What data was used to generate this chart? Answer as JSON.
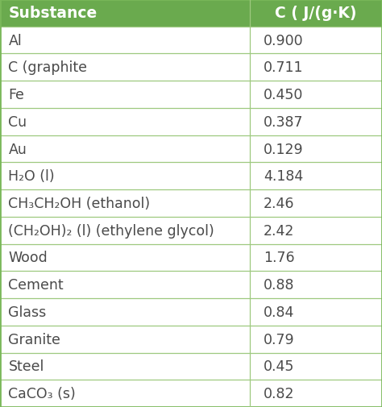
{
  "header": [
    "Substance",
    "C ( J/(g·K)"
  ],
  "rows": [
    [
      "Al",
      "0.900"
    ],
    [
      "C (graphite",
      "0.711"
    ],
    [
      "Fe",
      "0.450"
    ],
    [
      "Cu",
      "0.387"
    ],
    [
      "Au",
      "0.129"
    ],
    [
      "H₂O (l)",
      "4.184"
    ],
    [
      "CH₃CH₂OH (ethanol)",
      "2.46"
    ],
    [
      "(CH₂OH)₂ (l) (ethylene glycol)",
      "2.42"
    ],
    [
      "Wood",
      "1.76"
    ],
    [
      "Cement",
      "0.88"
    ],
    [
      "Glass",
      "0.84"
    ],
    [
      "Granite",
      "0.79"
    ],
    [
      "Steel",
      "0.45"
    ],
    [
      "CaCO₃ (s)",
      "0.82"
    ]
  ],
  "header_bg": "#6aaa4e",
  "header_text_color": "#ffffff",
  "row_bg": "#ffffff",
  "cell_text_color": "#4a4a4a",
  "border_color": "#9ec97f",
  "outer_border_color": "#7ab85a",
  "header_font_size": 13.5,
  "row_font_size": 12.5,
  "col_split": 0.655
}
